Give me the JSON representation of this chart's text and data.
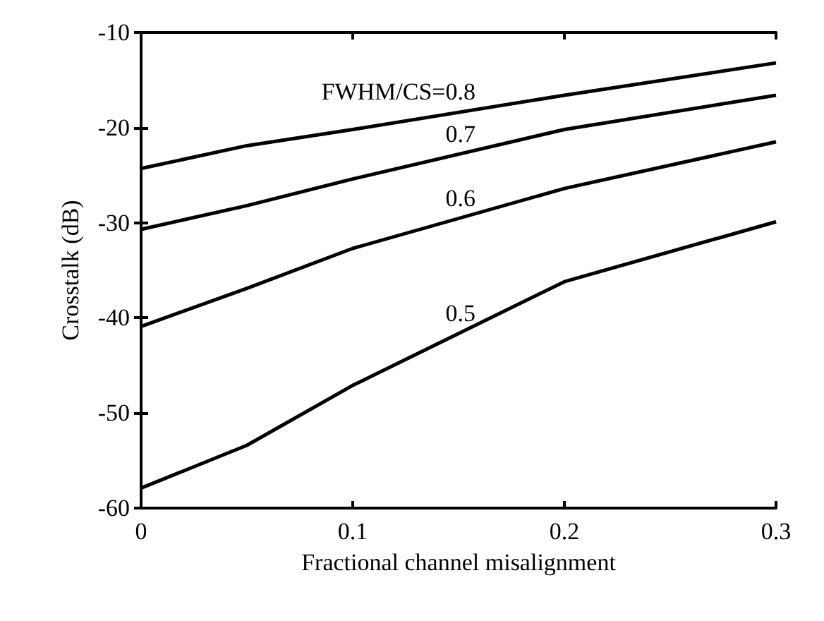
{
  "chart_data": {
    "type": "line",
    "xlabel": "Fractional channel misalignment",
    "ylabel": "Crosstalk (dB)",
    "x": [
      0,
      0.05,
      0.1,
      0.2,
      0.3
    ],
    "series": [
      {
        "name": "FWHM/CS=0.8",
        "color": "#000000",
        "values": [
          -24.3,
          -21.9,
          -20.2,
          -16.6,
          -13.2
        ]
      },
      {
        "name": "0.7",
        "color": "#000000",
        "values": [
          -30.7,
          -28.2,
          -25.4,
          -20.2,
          -16.6
        ]
      },
      {
        "name": "0.6",
        "color": "#000000",
        "values": [
          -40.9,
          -36.9,
          -32.7,
          -26.4,
          -21.5
        ]
      },
      {
        "name": "0.5",
        "color": "#000000",
        "values": [
          -57.9,
          -53.4,
          -47.1,
          -36.2,
          -29.9
        ]
      }
    ],
    "xlim": [
      0,
      0.3
    ],
    "xticks": [
      0,
      0.1,
      0.2,
      0.3
    ],
    "ylim": [
      -60,
      -10
    ],
    "yticks": [
      -60,
      -50,
      -40,
      -30,
      -20,
      -10
    ],
    "grid": false,
    "legend": false,
    "marker": "none",
    "line_style": "solid"
  }
}
